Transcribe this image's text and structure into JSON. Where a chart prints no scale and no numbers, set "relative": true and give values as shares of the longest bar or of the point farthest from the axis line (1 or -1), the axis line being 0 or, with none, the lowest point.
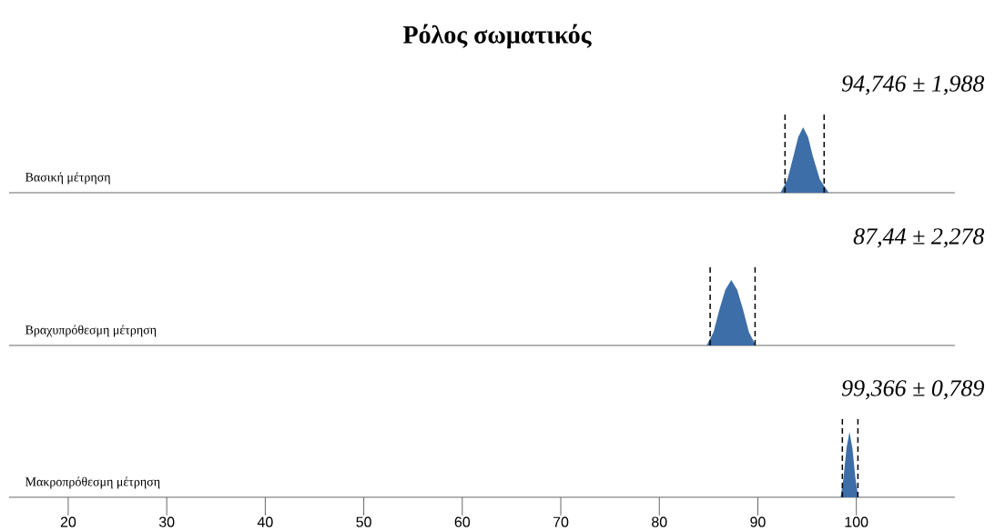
{
  "chart_data": [
    {
      "type": "area",
      "title": "Ρόλος σωματικός",
      "ylabel": "Βασική μέτρηση",
      "annotations": [
        "94,746 ± 1,988"
      ],
      "relative": true,
      "color": "#3d6ea8",
      "xlim": [
        14,
        110
      ],
      "tick_labels": false,
      "xticks": [
        20,
        30,
        40,
        50,
        60,
        70,
        80,
        90,
        100
      ],
      "x": [
        92.3,
        93.0,
        93.6,
        94.1,
        94.6,
        95.1,
        95.6,
        96.3,
        97.2
      ],
      "values": [
        0,
        0.2,
        0.55,
        0.85,
        1,
        0.85,
        0.55,
        0.2,
        0
      ],
      "ref_lines": [
        {
          "axis": "x",
          "value": 92.76,
          "line_style": "dashed",
          "color": "#000000"
        },
        {
          "axis": "x",
          "value": 96.73,
          "line_style": "dashed",
          "color": "#000000"
        }
      ]
    },
    {
      "type": "area",
      "ylabel": "Βραχυπρόθεσμη μέτρηση",
      "annotations": [
        "87,44 ± 2,278"
      ],
      "relative": true,
      "color": "#3d6ea8",
      "xlim": [
        14,
        110
      ],
      "tick_labels": false,
      "xticks": [
        20,
        30,
        40,
        50,
        60,
        70,
        80,
        90,
        100
      ],
      "x": [
        84.8,
        85.5,
        86.1,
        86.7,
        87.3,
        87.9,
        88.5,
        89.1,
        89.8
      ],
      "values": [
        0,
        0.2,
        0.55,
        0.85,
        1,
        0.85,
        0.55,
        0.2,
        0
      ],
      "ref_lines": [
        {
          "axis": "x",
          "value": 85.16,
          "line_style": "dashed",
          "color": "#000000"
        },
        {
          "axis": "x",
          "value": 89.72,
          "line_style": "dashed",
          "color": "#000000"
        }
      ]
    },
    {
      "type": "area",
      "ylabel": "Μακροπρόθεσμη μέτρηση",
      "annotations": [
        "99,366 ± 0,789"
      ],
      "relative": true,
      "color": "#3d6ea8",
      "xlim": [
        14,
        110
      ],
      "xticks": [
        20,
        30,
        40,
        50,
        60,
        70,
        80,
        90,
        100
      ],
      "x": [
        98.4,
        98.7,
        99.0,
        99.3,
        99.6,
        99.9,
        100.2
      ],
      "values": [
        0,
        0.3,
        0.75,
        1,
        0.75,
        0.3,
        0
      ],
      "ref_lines": [
        {
          "axis": "x",
          "value": 98.58,
          "line_style": "dashed",
          "color": "#000000"
        },
        {
          "axis": "x",
          "value": 100.16,
          "line_style": "dashed",
          "color": "#000000"
        }
      ]
    }
  ]
}
